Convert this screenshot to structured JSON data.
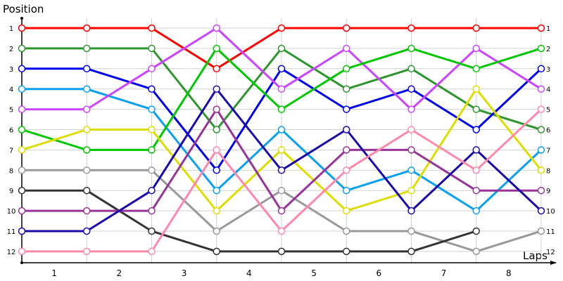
{
  "chart_data": {
    "type": "line",
    "title": "",
    "xlabel": "Laps",
    "ylabel": "Position",
    "x": [
      0,
      1,
      2,
      3,
      4,
      5,
      6,
      7,
      8
    ],
    "x_tick_labels": [
      "1",
      "2",
      "3",
      "4",
      "5",
      "6",
      "7",
      "8"
    ],
    "y_tick_labels": [
      "1",
      "2",
      "3",
      "4",
      "5",
      "6",
      "7",
      "8",
      "9",
      "10",
      "11",
      "12"
    ],
    "ylim": [
      1,
      12
    ],
    "y_inverted": true,
    "grid": true,
    "legend": "none",
    "series": [
      {
        "name": "red",
        "color": "#ff0000",
        "values": [
          1,
          1,
          1,
          3,
          1,
          1,
          1,
          1,
          1
        ]
      },
      {
        "name": "dark-green",
        "color": "#2e962e",
        "values": [
          2,
          2,
          2,
          6,
          2,
          4,
          3,
          5,
          6
        ]
      },
      {
        "name": "blue",
        "color": "#0000ee",
        "values": [
          3,
          3,
          4,
          8,
          3,
          5,
          4,
          6,
          3
        ]
      },
      {
        "name": "light-blue",
        "color": "#0aa0f0",
        "values": [
          4,
          4,
          5,
          9,
          6,
          9,
          8,
          10,
          7
        ]
      },
      {
        "name": "magenta",
        "color": "#cc44ff",
        "values": [
          5,
          5,
          3,
          1,
          4,
          2,
          5,
          2,
          4
        ]
      },
      {
        "name": "bright-green",
        "color": "#00c800",
        "values": [
          6,
          7,
          7,
          2,
          5,
          3,
          2,
          3,
          2
        ]
      },
      {
        "name": "yellow",
        "color": "#dddd00",
        "values": [
          7,
          6,
          6,
          10,
          7,
          10,
          9,
          4,
          8
        ]
      },
      {
        "name": "gray",
        "color": "#999999",
        "values": [
          8,
          8,
          8,
          11,
          9,
          11,
          11,
          12,
          11
        ]
      },
      {
        "name": "black",
        "color": "#333333",
        "values": [
          9,
          9,
          11,
          12,
          12,
          12,
          12,
          11,
          null
        ]
      },
      {
        "name": "purple",
        "color": "#993399",
        "values": [
          10,
          10,
          10,
          5,
          10,
          7,
          7,
          9,
          9
        ]
      },
      {
        "name": "navy",
        "color": "#1a0aaa",
        "values": [
          11,
          11,
          9,
          4,
          8,
          6,
          10,
          7,
          10
        ]
      },
      {
        "name": "pink",
        "color": "#ff88aa",
        "values": [
          12,
          12,
          12,
          7,
          11,
          8,
          6,
          8,
          5
        ]
      }
    ]
  },
  "labels": {
    "y_axis_title": "Position",
    "x_axis_title": "Laps"
  }
}
